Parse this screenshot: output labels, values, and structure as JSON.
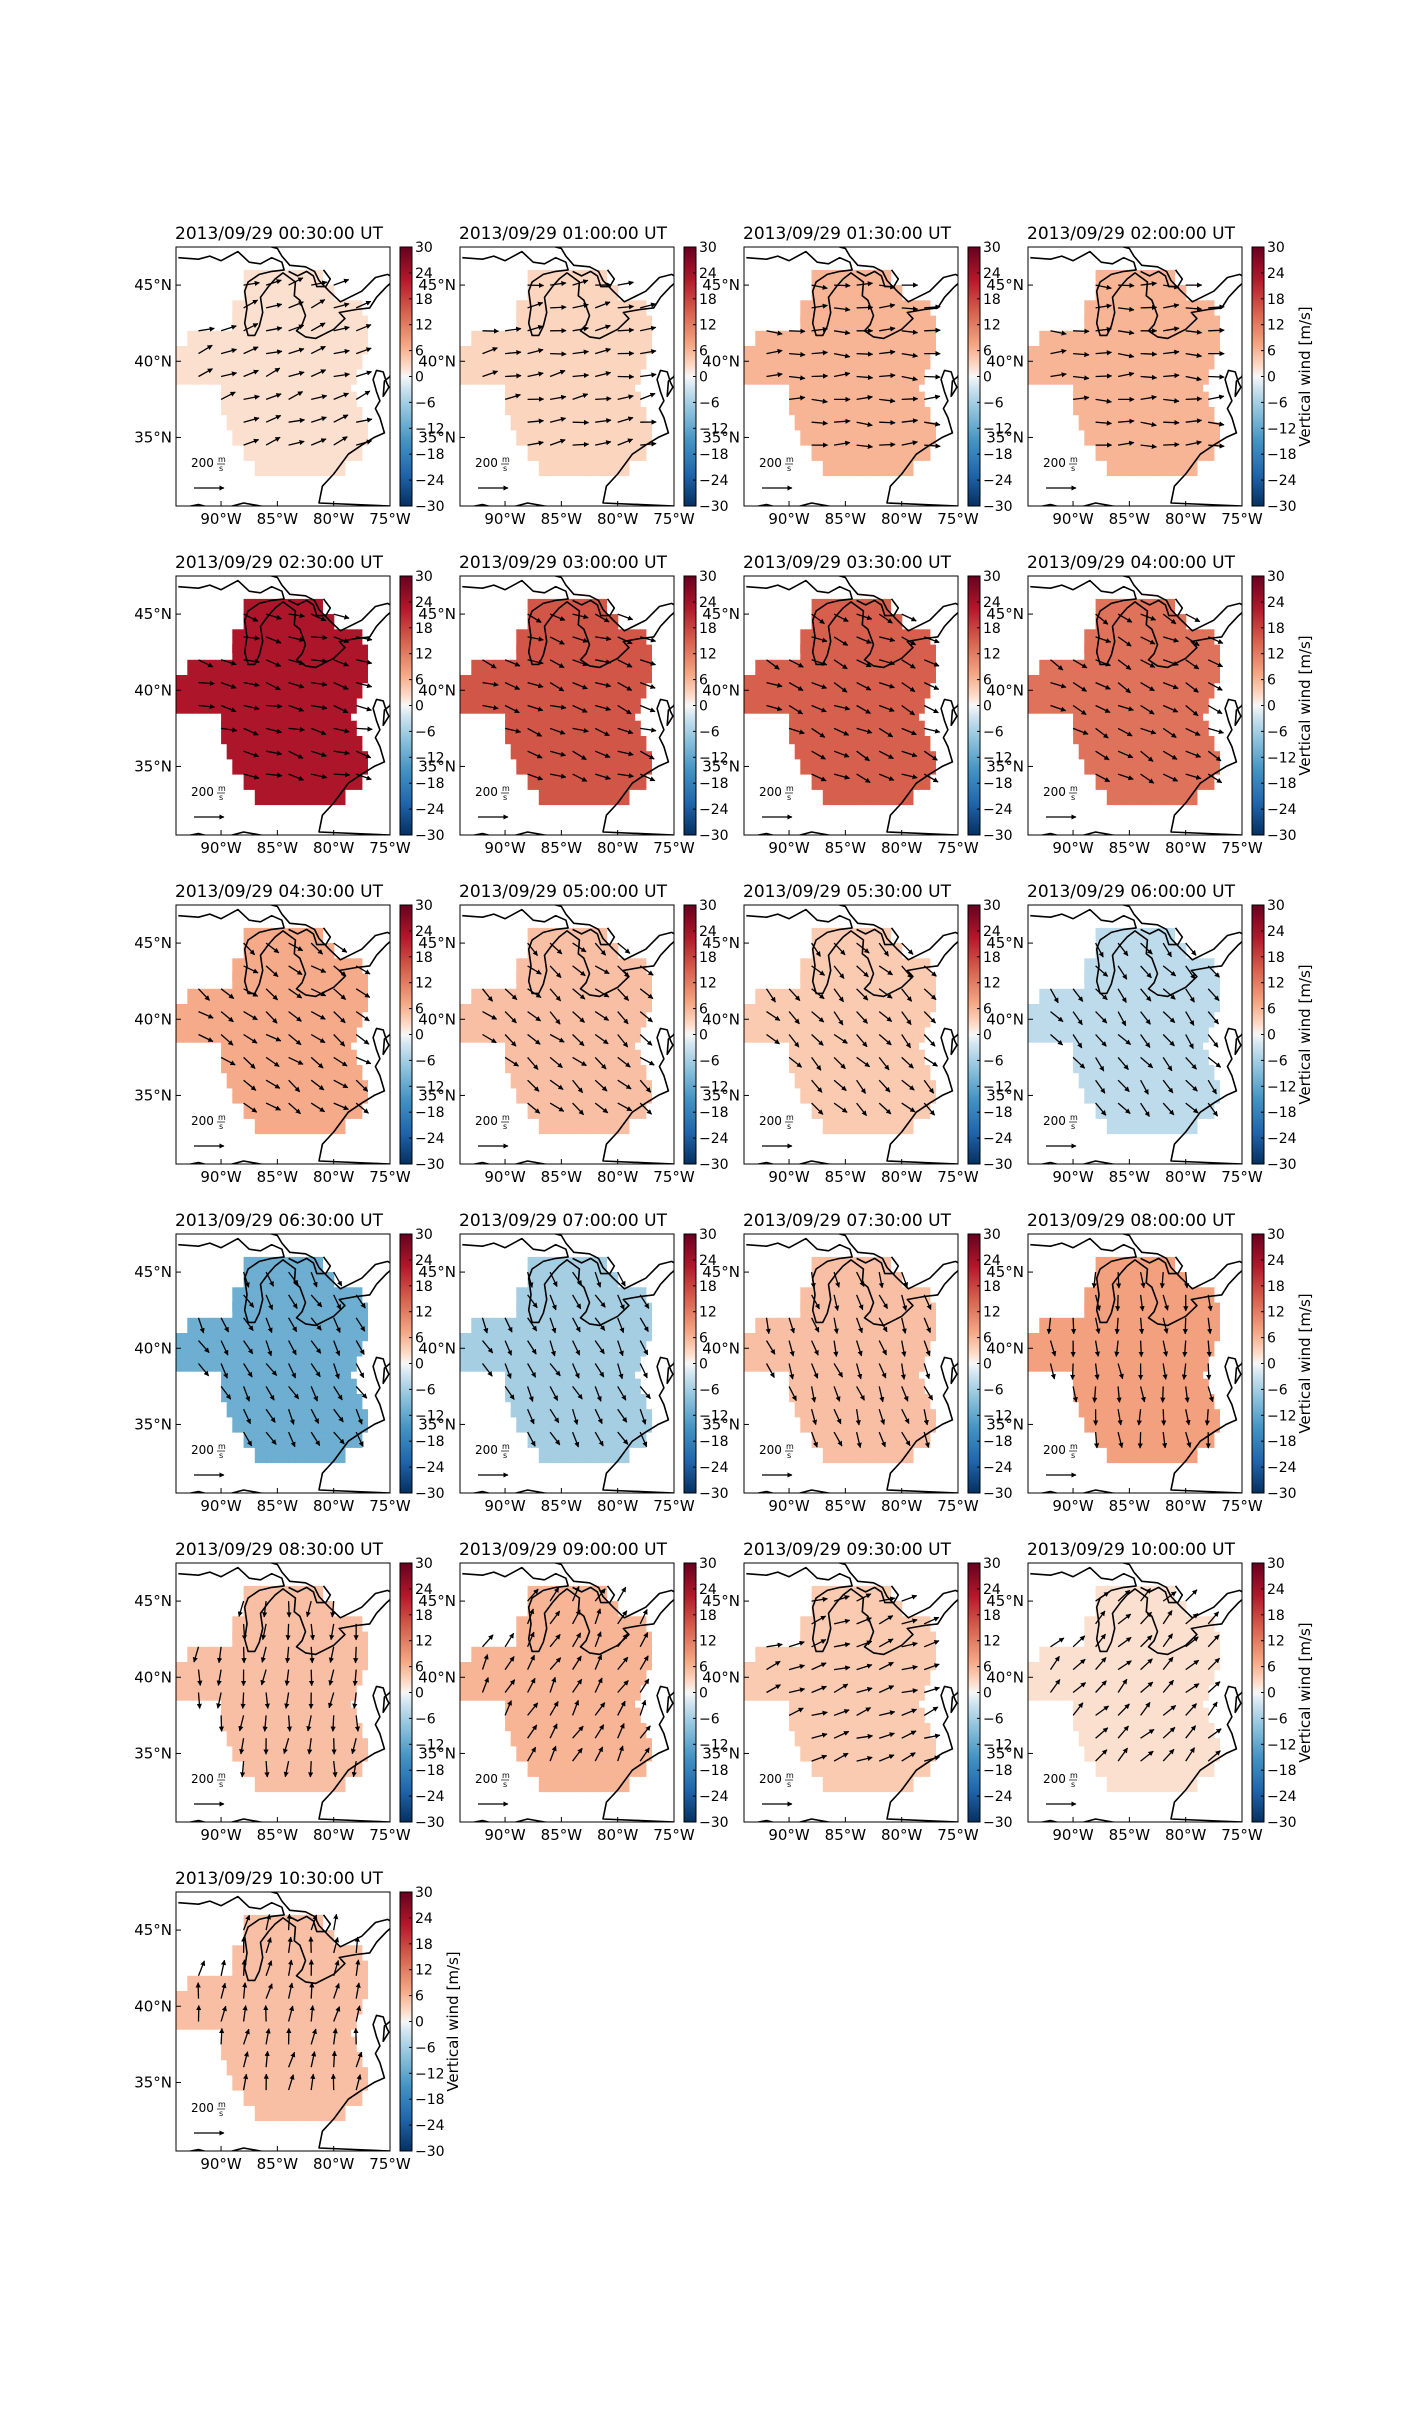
{
  "chart_data": {
    "type": "heatmap",
    "description_type": "map small multiples with quiver vectors",
    "colormap": "RdBu_r",
    "colorbar": {
      "label": "Vertical wind [m/s]",
      "range": [
        -30,
        30
      ],
      "ticks": [
        "30",
        "24",
        "18",
        "12",
        "6",
        "0",
        "−6",
        "−12",
        "−18",
        "−24",
        "−30"
      ]
    },
    "x_ticks": [
      "90°W",
      "85°W",
      "80°W",
      "75°W"
    ],
    "y_ticks": [
      "45°N",
      "40°N",
      "35°N"
    ],
    "lon_range": [
      -94,
      -75
    ],
    "lat_range": [
      30.5,
      47.5
    ],
    "reference_arrow": {
      "value": 200,
      "label": "200",
      "unit_num": "m",
      "unit_den": "s"
    },
    "panels": [
      {
        "title": "2013/09/29 00:30:00 UT",
        "vertical_wind": 2,
        "vector_dir": 20
      },
      {
        "title": "2013/09/29 01:00:00 UT",
        "vertical_wind": 3,
        "vector_dir": 10
      },
      {
        "title": "2013/09/29 01:30:00 UT",
        "vertical_wind": 6,
        "vector_dir": 0
      },
      {
        "title": "2013/09/29 02:00:00 UT",
        "vertical_wind": 6,
        "vector_dir": 0
      },
      {
        "title": "2013/09/29 02:30:00 UT",
        "vertical_wind": 23,
        "vector_dir": -15
      },
      {
        "title": "2013/09/29 03:00:00 UT",
        "vertical_wind": 16,
        "vector_dir": -20
      },
      {
        "title": "2013/09/29 03:30:00 UT",
        "vertical_wind": 15,
        "vector_dir": -25
      },
      {
        "title": "2013/09/29 04:00:00 UT",
        "vertical_wind": 13,
        "vector_dir": -28
      },
      {
        "title": "2013/09/29 04:30:00 UT",
        "vertical_wind": 7,
        "vector_dir": -35
      },
      {
        "title": "2013/09/29 05:00:00 UT",
        "vertical_wind": 5,
        "vector_dir": -40
      },
      {
        "title": "2013/09/29 05:30:00 UT",
        "vertical_wind": 4,
        "vector_dir": -45
      },
      {
        "title": "2013/09/29 06:00:00 UT",
        "vertical_wind": -4,
        "vector_dir": -50
      },
      {
        "title": "2013/09/29 06:30:00 UT",
        "vertical_wind": -11,
        "vector_dir": -60
      },
      {
        "title": "2013/09/29 07:00:00 UT",
        "vertical_wind": -6,
        "vector_dir": -62
      },
      {
        "title": "2013/09/29 07:30:00 UT",
        "vertical_wind": 5,
        "vector_dir": -70
      },
      {
        "title": "2013/09/29 08:00:00 UT",
        "vertical_wind": 8,
        "vector_dir": -85
      },
      {
        "title": "2013/09/29 08:30:00 UT",
        "vertical_wind": 5,
        "vector_dir": -95
      },
      {
        "title": "2013/09/29 09:00:00 UT",
        "vertical_wind": 6,
        "vector_dir": 60
      },
      {
        "title": "2013/09/29 09:30:00 UT",
        "vertical_wind": 4,
        "vector_dir": 20
      },
      {
        "title": "2013/09/29 10:00:00 UT",
        "vertical_wind": 2,
        "vector_dir": 45
      },
      {
        "title": "2013/09/29 10:30:00 UT",
        "vertical_wind": 5,
        "vector_dir": 80
      }
    ]
  }
}
